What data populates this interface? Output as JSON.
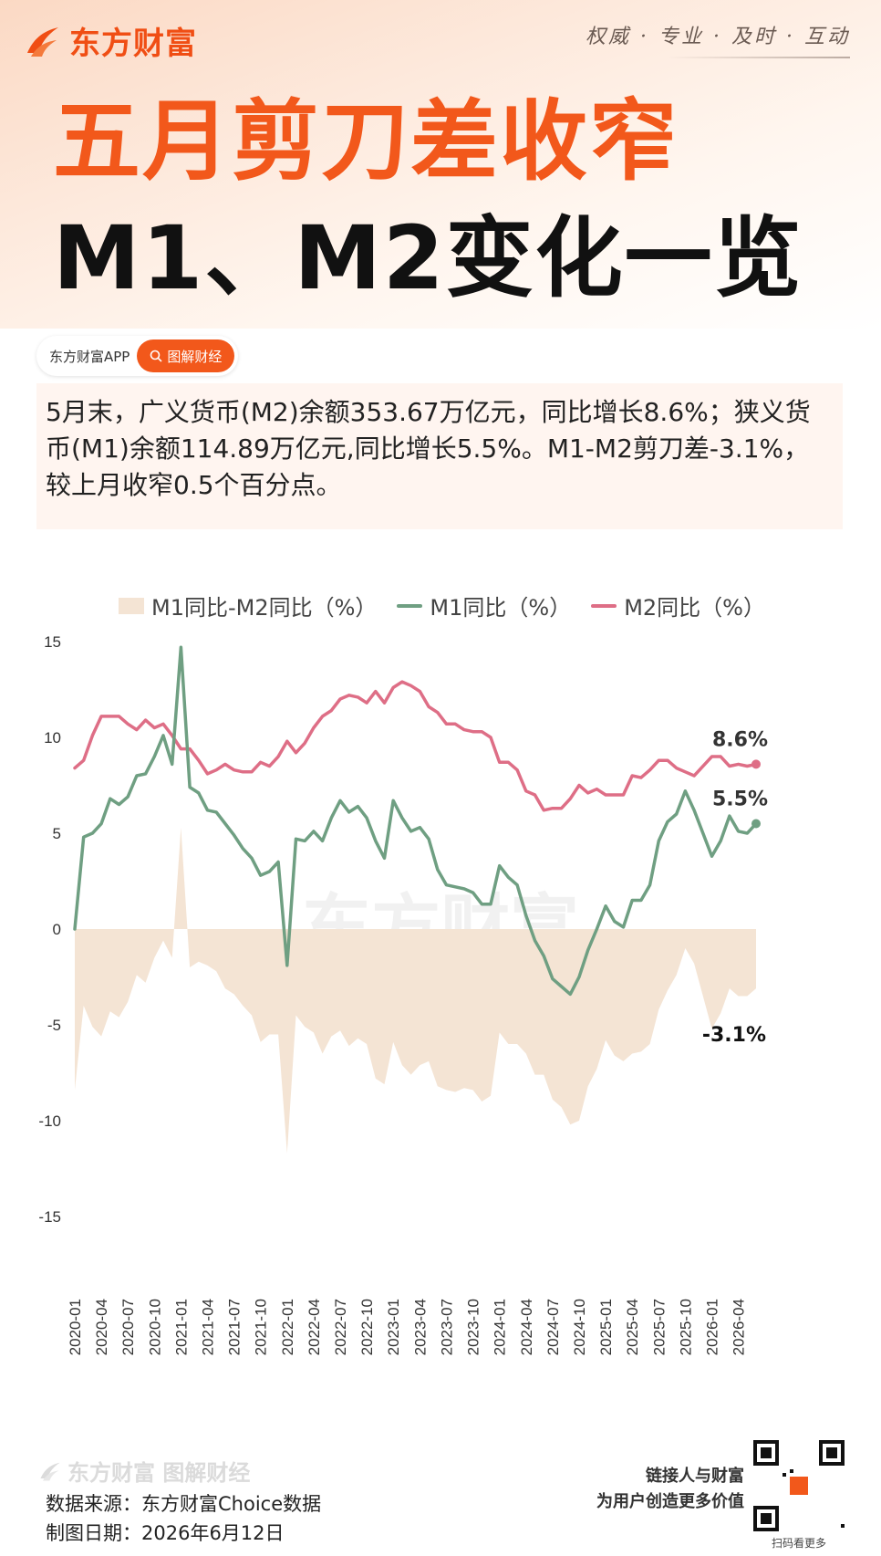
{
  "header": {
    "brand": "东方财富",
    "slogan": "权威 · 专业 · 及时 · 互动",
    "title_line1": "五月剪刀差收窄",
    "title_line2": "M1、M2变化一览"
  },
  "tag": {
    "app": "东方财富APP",
    "pill": "图解财经"
  },
  "summary": "5月末，广义货币(M2)余额353.67万亿元，同比增长8.6%；狭义货币(M1)余额114.89万亿元,同比增长5.5%。M1-M2剪刀差-3.1%，较上月收窄0.5个百分点。",
  "colors": {
    "accent": "#f2581b",
    "m1": "#6f9f82",
    "m2": "#de6e86",
    "gap": "#f4e4d4"
  },
  "watermark": "东方财富",
  "chart_data": {
    "type": "line",
    "ylim": [
      -15,
      20
    ],
    "yticks": [
      "20",
      "15",
      "10",
      "5",
      "0",
      "-5",
      "-10",
      "-15"
    ],
    "xticks": [
      "2020-01",
      "2020-04",
      "2020-07",
      "2020-10",
      "2021-01",
      "2021-04",
      "2021-07",
      "2021-10",
      "2022-01",
      "2022-04",
      "2022-07",
      "2022-10",
      "2023-01",
      "2023-04",
      "2023-07",
      "2023-10",
      "2024-01",
      "2024-04",
      "2024-07",
      "2024-10",
      "2025-01",
      "2025-04",
      "2025-07",
      "2025-10",
      "2026-01",
      "2026-04"
    ],
    "legend": [
      "M1同比-M2同比（%）",
      "M1同比（%）",
      "M2同比（%）"
    ],
    "series": [
      {
        "name": "M1同比（%）",
        "values": [
          0.0,
          4.8,
          5.0,
          5.5,
          6.8,
          6.5,
          6.9,
          8.0,
          8.1,
          9.0,
          10.1,
          8.6,
          14.7,
          7.4,
          7.1,
          6.2,
          6.1,
          5.5,
          4.9,
          4.2,
          3.7,
          2.8,
          3.0,
          3.5,
          -1.9,
          4.7,
          4.6,
          5.1,
          4.6,
          5.8,
          6.7,
          6.1,
          6.4,
          5.8,
          4.6,
          3.7,
          6.7,
          5.8,
          5.1,
          5.3,
          4.7,
          3.1,
          2.3,
          2.2,
          2.1,
          1.9,
          1.3,
          1.3,
          3.3,
          2.7,
          2.3,
          0.7,
          -0.6,
          -1.4,
          -2.6,
          -3.0,
          -3.4,
          -2.5,
          -1.1,
          0.0,
          1.2,
          0.4,
          0.1,
          1.5,
          1.5,
          2.3,
          4.6,
          5.6,
          6.0,
          7.2,
          6.2,
          5.0,
          3.8,
          4.6,
          5.9,
          5.1,
          5.0,
          5.5
        ],
        "end_label": "5.5%"
      },
      {
        "name": "M2同比（%）",
        "values": [
          8.4,
          8.8,
          10.1,
          11.1,
          11.1,
          11.1,
          10.7,
          10.4,
          10.9,
          10.5,
          10.7,
          10.1,
          9.4,
          9.4,
          8.8,
          8.1,
          8.3,
          8.6,
          8.3,
          8.2,
          8.2,
          8.7,
          8.5,
          9.0,
          9.8,
          9.2,
          9.7,
          10.5,
          11.1,
          11.4,
          12.0,
          12.2,
          12.1,
          11.8,
          12.4,
          11.8,
          12.6,
          12.9,
          12.7,
          12.4,
          11.6,
          11.3,
          10.7,
          10.7,
          10.4,
          10.3,
          10.3,
          10.0,
          8.7,
          8.7,
          8.3,
          7.2,
          7.0,
          6.2,
          6.3,
          6.3,
          6.8,
          7.5,
          7.1,
          7.3,
          7.0,
          7.0,
          7.0,
          8.0,
          7.9,
          8.3,
          8.8,
          8.8,
          8.4,
          8.2,
          8.0,
          8.5,
          9.0,
          9.0,
          8.5,
          8.6,
          8.5,
          8.6
        ],
        "end_label": "8.6%"
      },
      {
        "name": "M1同比-M2同比（%）",
        "values": [
          -8.4,
          -4.0,
          -5.1,
          -5.6,
          -4.3,
          -4.6,
          -3.8,
          -2.4,
          -2.8,
          -1.5,
          -0.6,
          -1.5,
          5.3,
          -2.0,
          -1.7,
          -1.9,
          -2.2,
          -3.1,
          -3.4,
          -4.0,
          -4.5,
          -5.9,
          -5.5,
          -5.5,
          -11.7,
          -4.5,
          -5.1,
          -5.4,
          -6.5,
          -5.6,
          -5.3,
          -6.1,
          -5.7,
          -6.0,
          -7.8,
          -8.1,
          -5.9,
          -7.1,
          -7.6,
          -7.1,
          -6.9,
          -8.2,
          -8.4,
          -8.5,
          -8.3,
          -8.4,
          -9.0,
          -8.7,
          -5.4,
          -6.0,
          -6.0,
          -6.5,
          -7.6,
          -7.6,
          -8.9,
          -9.3,
          -10.2,
          -10.0,
          -8.2,
          -7.3,
          -5.8,
          -6.6,
          -6.9,
          -6.5,
          -6.4,
          -6.0,
          -4.2,
          -3.2,
          -2.4,
          -1.0,
          -1.8,
          -3.5,
          -5.2,
          -4.4,
          -3.1,
          -3.5,
          -3.5,
          -3.1
        ],
        "end_label": "-3.1%"
      }
    ]
  },
  "footer": {
    "brand": "东方财富 图解财经",
    "source": "数据来源：东方财富Choice数据",
    "date": "制图日期：2026年6月12日",
    "slogan_line1": "链接人与财富",
    "slogan_line2": "为用户创造更多价值",
    "qr_caption": "扫码看更多"
  }
}
